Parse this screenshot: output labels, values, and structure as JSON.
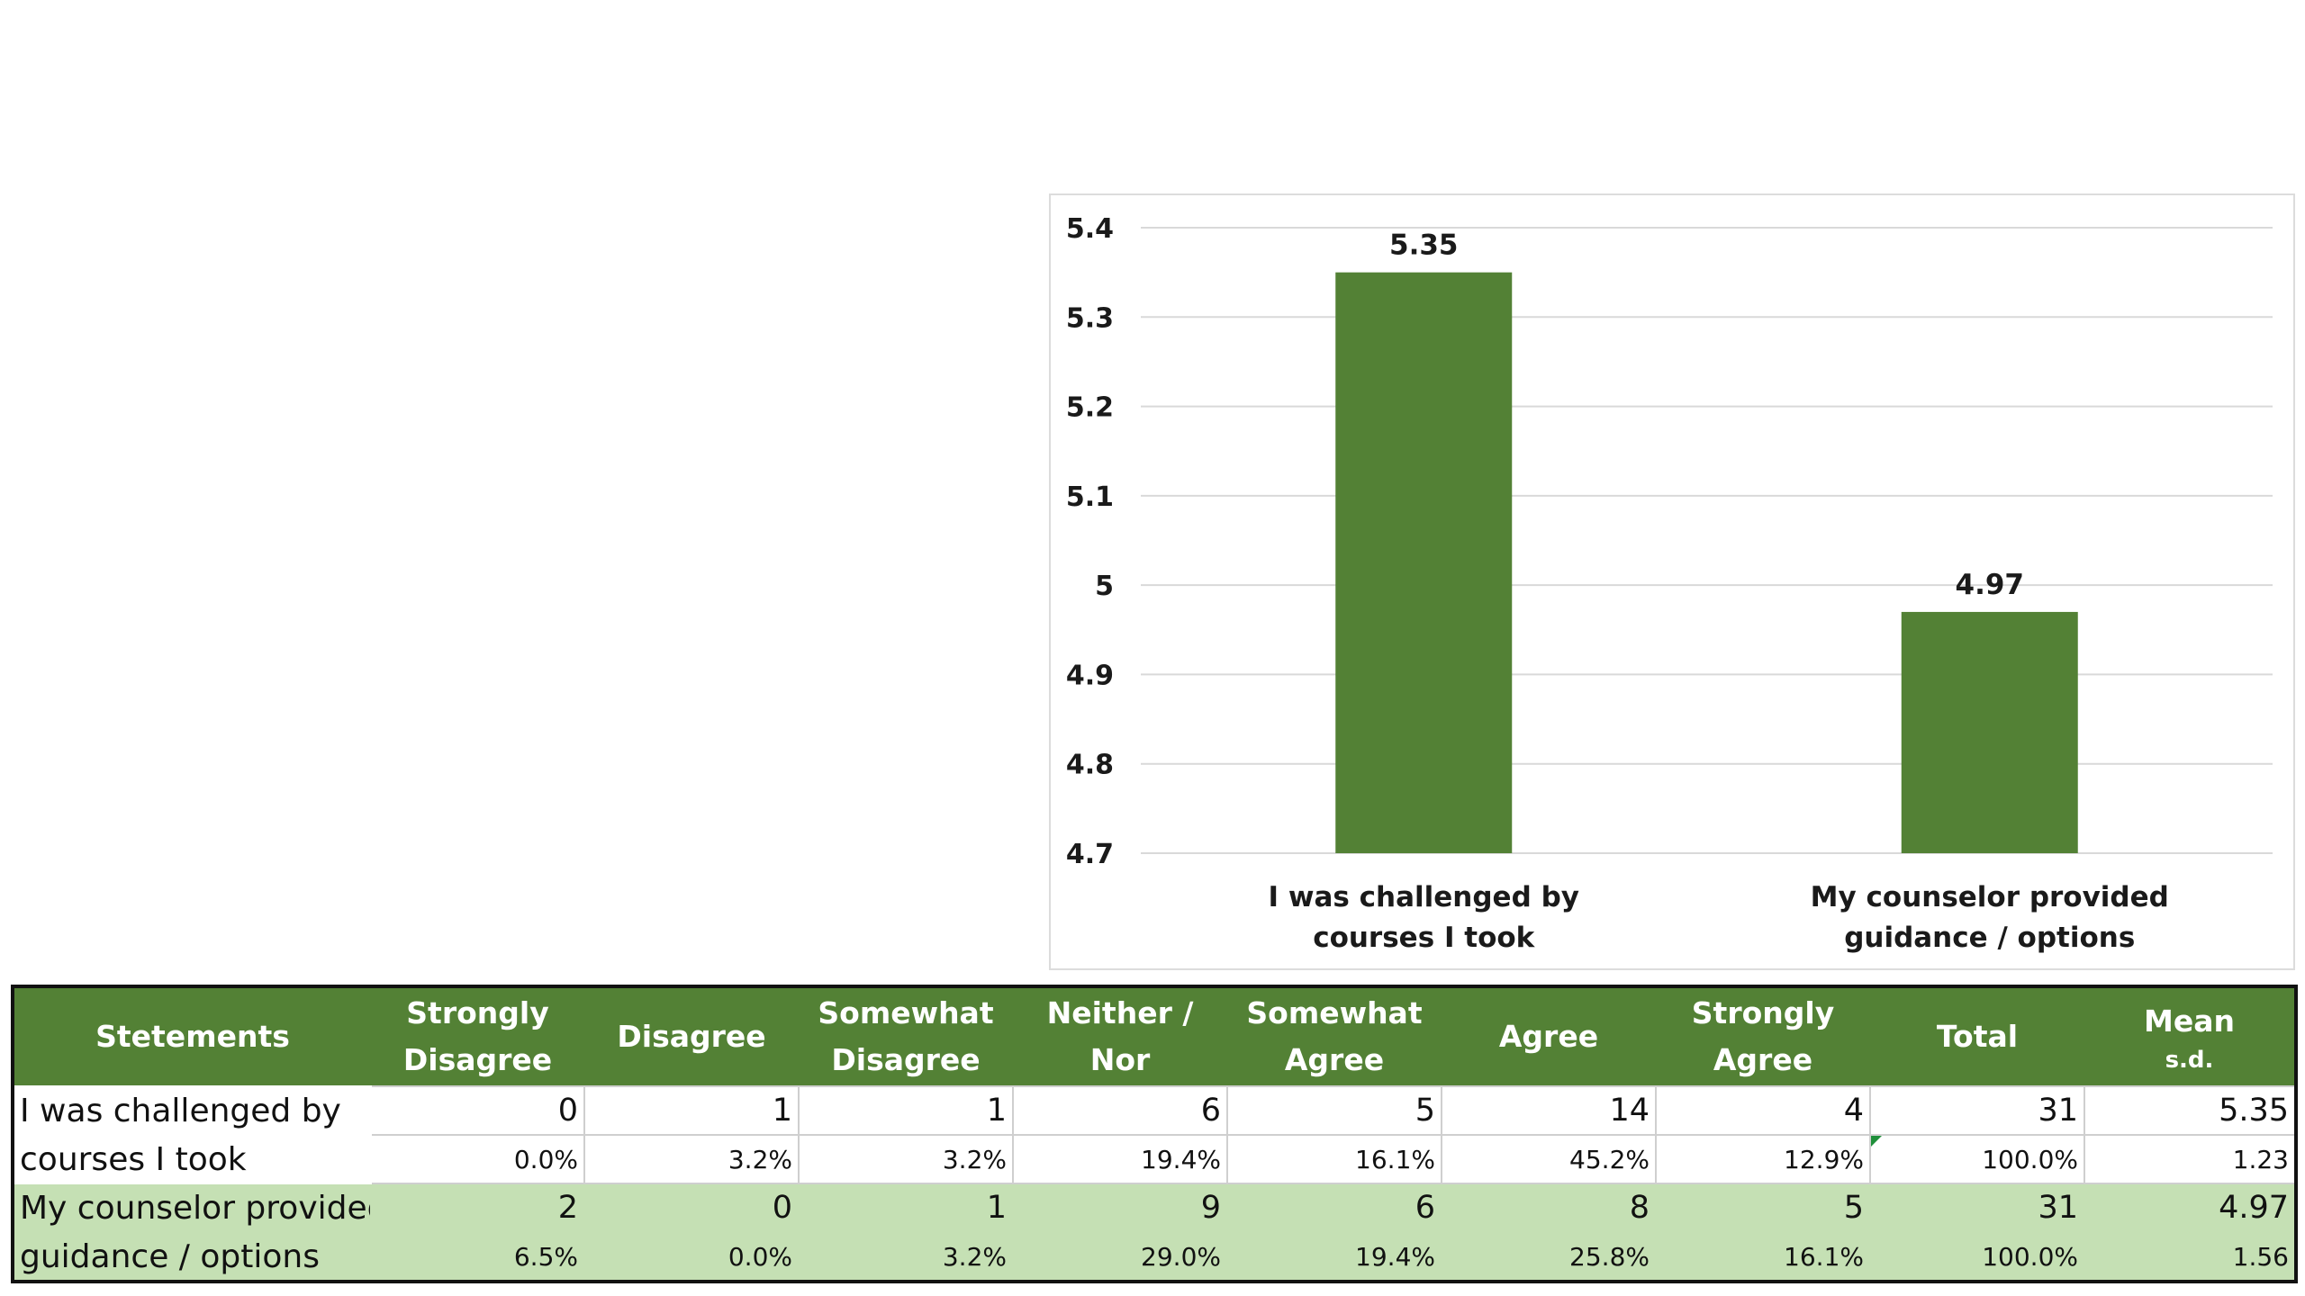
{
  "chart_data": {
    "type": "bar",
    "categories": [
      [
        "I was challenged by",
        "courses I took"
      ],
      [
        "My counselor provided",
        "guidance / options"
      ]
    ],
    "values": [
      5.35,
      4.97
    ],
    "data_labels": [
      "5.35",
      "4.97"
    ],
    "ylim": [
      4.7,
      5.4
    ],
    "yticks": [
      4.7,
      4.8,
      4.9,
      5.0,
      5.1,
      5.2,
      5.3,
      5.4
    ],
    "ytick_labels": [
      "4.7",
      "4.8",
      "4.9",
      "5",
      "5.1",
      "5.2",
      "5.3",
      "5.4"
    ],
    "title": "",
    "xlabel": "",
    "ylabel": "",
    "grid": true,
    "legend": "none",
    "bar_color": "#538135",
    "grid_color": "#d9d9d9"
  },
  "table": {
    "header_color": "#538135",
    "alt_row_color": "#c5e0b4",
    "headers": [
      {
        "lines": [
          "Stetements"
        ]
      },
      {
        "lines": [
          "Strongly",
          "Disagree"
        ]
      },
      {
        "lines": [
          "Disagree"
        ]
      },
      {
        "lines": [
          "Somewhat",
          "Disagree"
        ]
      },
      {
        "lines": [
          "Neither / Nor"
        ]
      },
      {
        "lines": [
          "Somewhat",
          "Agree"
        ]
      },
      {
        "lines": [
          "Agree"
        ]
      },
      {
        "lines": [
          "Strongly",
          "Agree"
        ]
      },
      {
        "lines": [
          "Total"
        ]
      },
      {
        "lines": [
          "Mean"
        ],
        "sub": "s.d."
      }
    ],
    "rows": [
      {
        "statement": [
          "I was challenged by",
          "courses I took"
        ],
        "counts": [
          "0",
          "1",
          "1",
          "6",
          "5",
          "14",
          "4",
          "31",
          "5.35"
        ],
        "percents": [
          "0.0%",
          "3.2%",
          "3.2%",
          "19.4%",
          "16.1%",
          "45.2%",
          "12.9%",
          "100.0%",
          "1.23"
        ]
      },
      {
        "statement": [
          "My counselor provided",
          "guidance / options"
        ],
        "counts": [
          "2",
          "0",
          "1",
          "9",
          "6",
          "8",
          "5",
          "31",
          "4.97"
        ],
        "percents": [
          "6.5%",
          "0.0%",
          "3.2%",
          "29.0%",
          "19.4%",
          "25.8%",
          "16.1%",
          "100.0%",
          "1.56"
        ]
      }
    ]
  }
}
